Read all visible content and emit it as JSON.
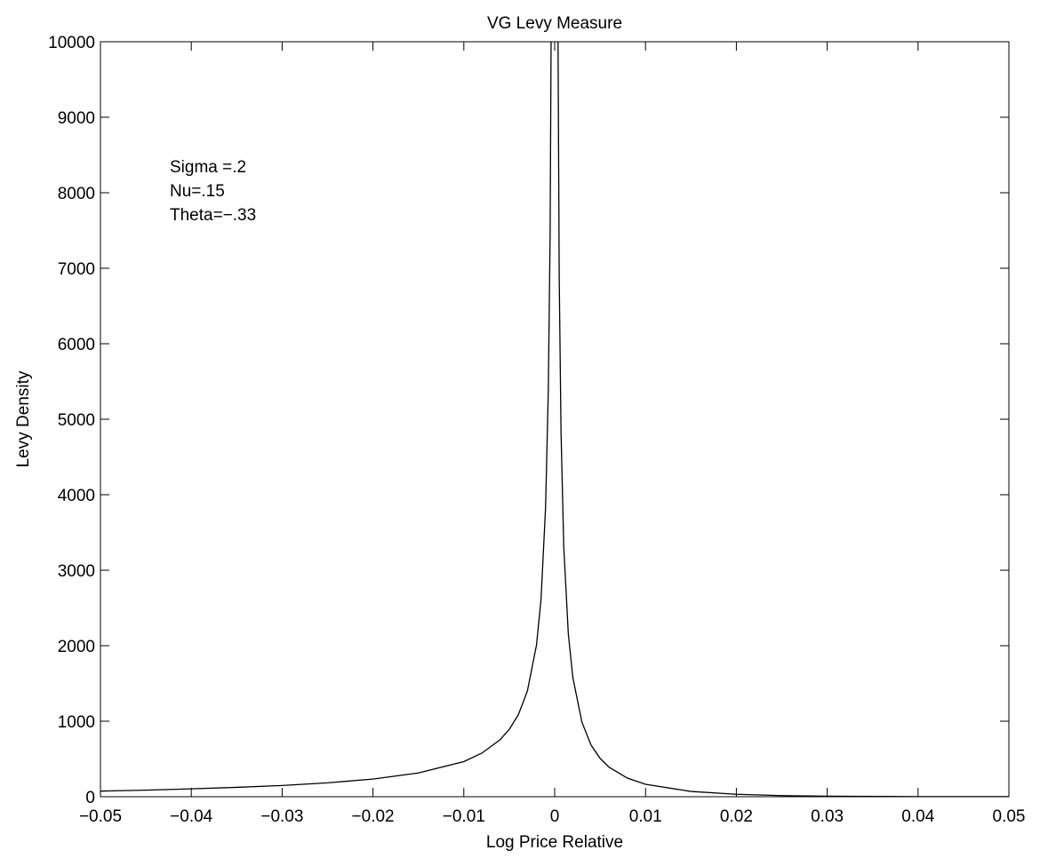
{
  "chart_data": {
    "type": "line",
    "title": "VG Levy Measure",
    "xlabel": "Log Price Relative",
    "ylabel": "Levy Density",
    "xlim": [
      -0.05,
      0.05
    ],
    "ylim": [
      0,
      10000
    ],
    "x_ticks": [
      -0.05,
      -0.04,
      -0.03,
      -0.02,
      -0.01,
      0,
      0.01,
      0.02,
      0.03,
      0.04,
      0.05
    ],
    "x_tick_labels": [
      "−0.05",
      "−0.04",
      "−0.03",
      "−0.02",
      "−0.01",
      "0",
      "0.01",
      "0.02",
      "0.03",
      "0.04",
      "0.05"
    ],
    "y_ticks": [
      0,
      1000,
      2000,
      3000,
      4000,
      5000,
      6000,
      7000,
      8000,
      9000,
      10000
    ],
    "y_tick_labels": [
      "0",
      "1000",
      "2000",
      "3000",
      "4000",
      "5000",
      "6000",
      "7000",
      "8000",
      "9000",
      "10000"
    ],
    "grid": false,
    "line_color": "#000000",
    "annotations": [
      "Sigma =.2",
      "Nu=.15",
      "Theta=−.33"
    ],
    "series": [
      {
        "x": [
          -0.05,
          -0.045,
          -0.04,
          -0.035,
          -0.03,
          -0.025,
          -0.02,
          -0.015,
          -0.01,
          -0.008,
          -0.006,
          -0.005,
          -0.004,
          -0.003,
          -0.002,
          -0.0015,
          -0.001,
          -0.0007,
          -0.0005,
          -0.0003,
          0.0003,
          0.0005,
          0.0007,
          0.001,
          0.0015,
          0.002,
          0.003,
          0.004,
          0.005,
          0.006,
          0.008,
          0.01,
          0.015,
          0.02,
          0.025,
          0.03,
          0.035,
          0.04,
          0.045,
          0.05
        ],
        "y": [
          74,
          87,
          104,
          124,
          149,
          184,
          234,
          315,
          465,
          578,
          756,
          891,
          1086,
          1402,
          2009,
          2615,
          3836,
          5382,
          7444,
          12275,
          11725,
          6894,
          4836,
          3316,
          2161,
          1579,
          987,
          685,
          507,
          390,
          247,
          165,
          70,
          32,
          15,
          7.2,
          3.5,
          1.75,
          0.88,
          0.44
        ]
      }
    ]
  }
}
